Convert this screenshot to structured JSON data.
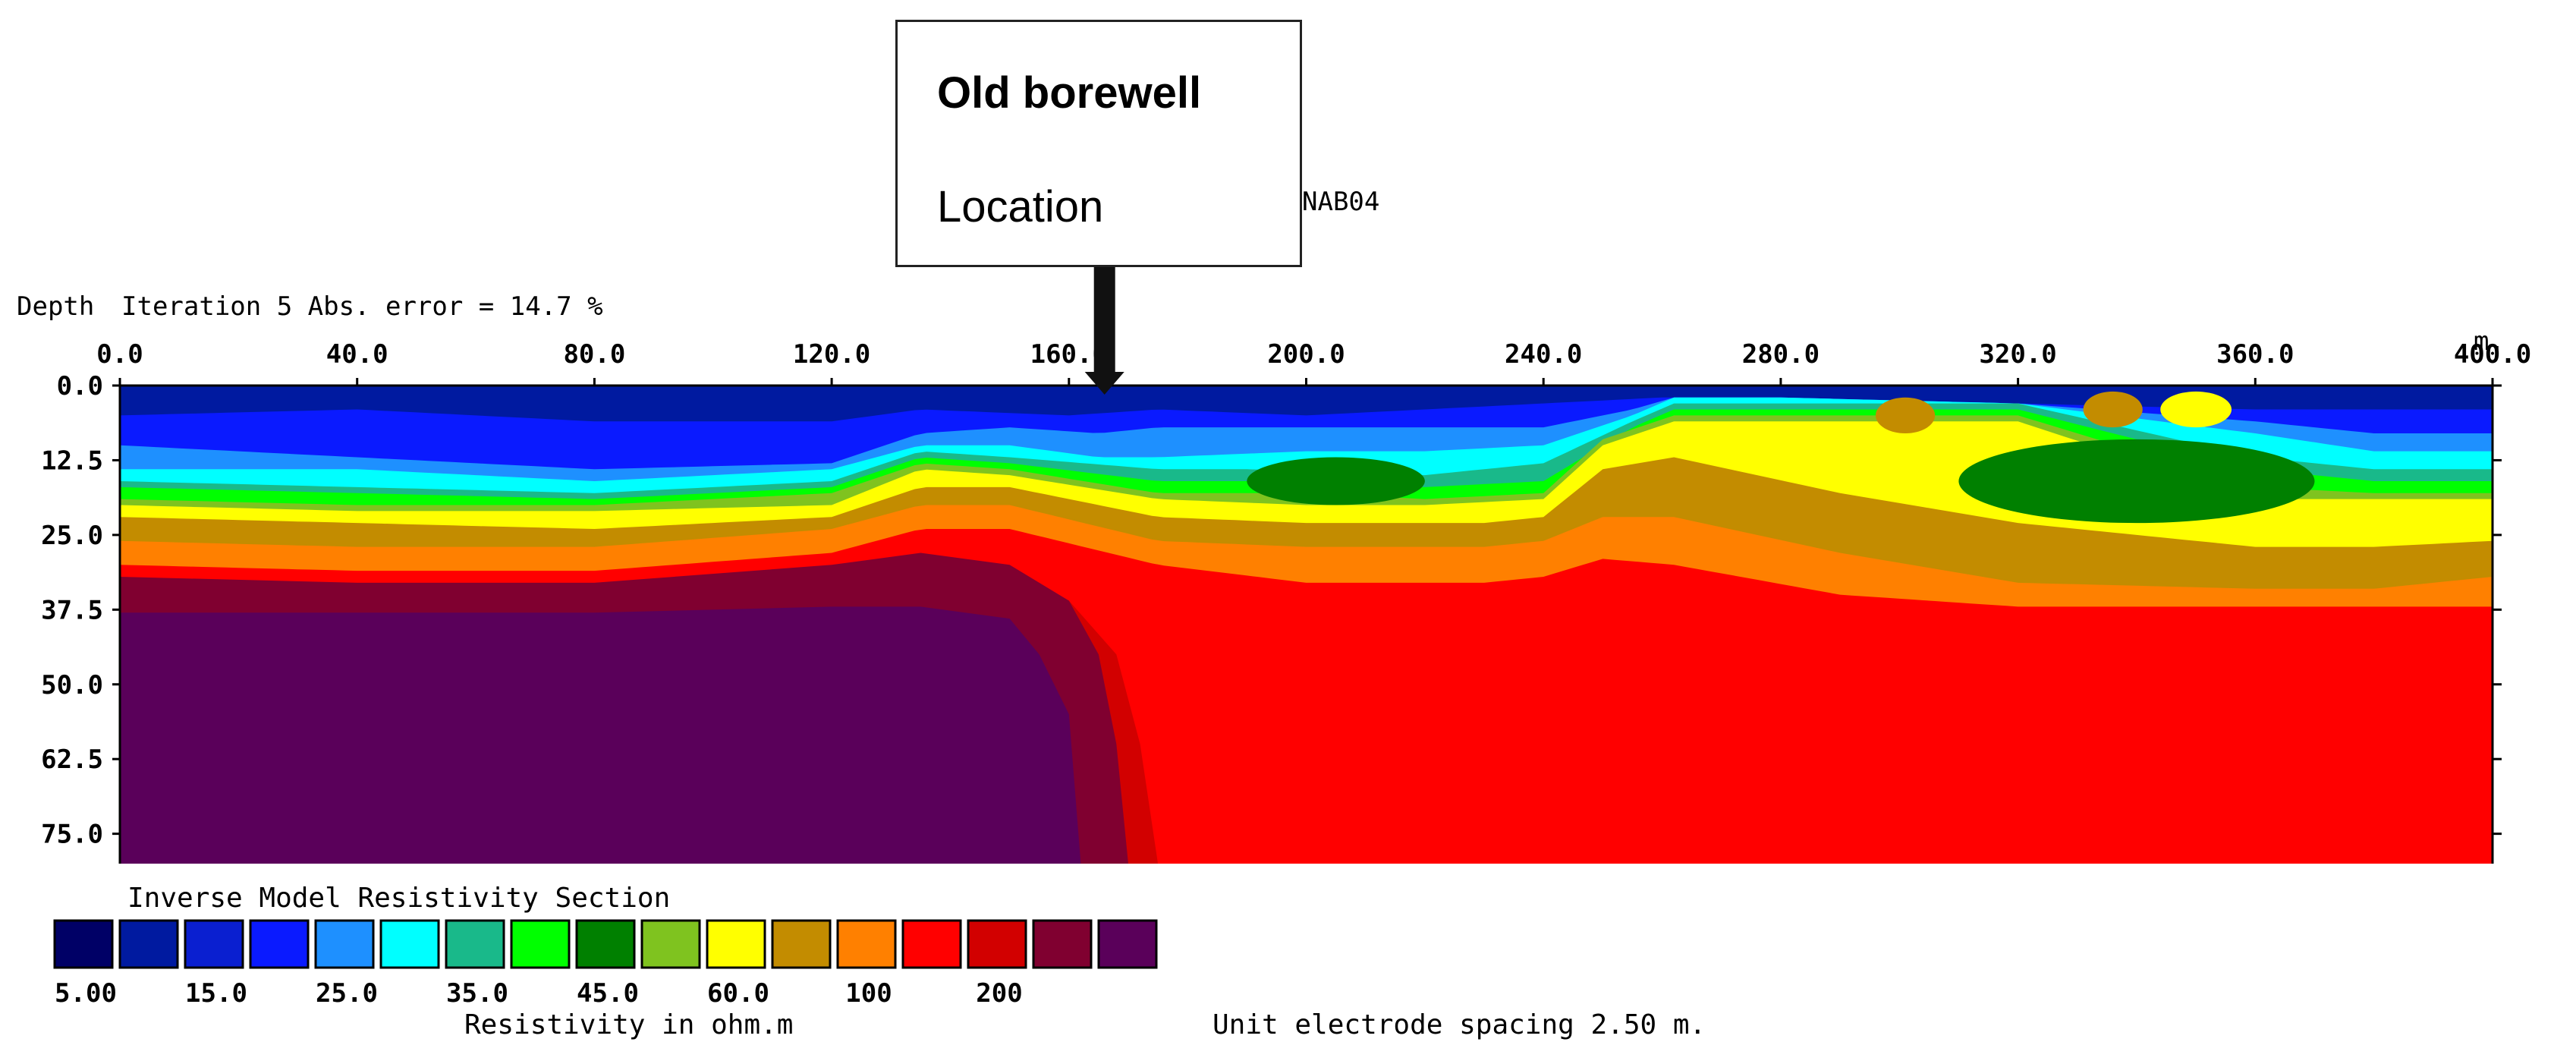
{
  "header": {
    "depth_label": "Depth",
    "iteration_text": "Iteration 5 Abs. error = 14.7 %",
    "profile_name": "NAB04",
    "x_unit": "m."
  },
  "callout": {
    "title": "Old borewell",
    "subtitle": "Location",
    "x_position_m": 166
  },
  "footer": {
    "section_title": "Inverse Model Resistivity Section",
    "resistivity_label": "Resistivity in ohm.m",
    "spacing_label": "Unit electrode spacing 2.50 m."
  },
  "colors": {
    "v1": "#000066",
    "v2": "#001aa0",
    "v3": "#0a1fd0",
    "v4": "#0a1aff",
    "v5": "#1e90ff",
    "v6": "#00ffff",
    "v7": "#19b98a",
    "v8": "#00ff00",
    "v9": "#008000",
    "v10": "#7fc31f",
    "v11": "#ffff00",
    "v12": "#c38c00",
    "v13": "#ff8000",
    "v14": "#ff0000",
    "v15": "#d20000",
    "v16": "#800030",
    "v17": "#5a005a"
  },
  "chart_data": {
    "type": "heatmap",
    "title": "Inverse Model Resistivity Section",
    "x_ticks": [
      "0.0",
      "40.0",
      "80.0",
      "120.0",
      "160.0",
      "200.0",
      "240.0",
      "280.0",
      "320.0",
      "360.0",
      "400.0"
    ],
    "y_ticks": [
      "0.0",
      "12.5",
      "25.0",
      "37.5",
      "50.0",
      "62.5",
      "75.0"
    ],
    "xlim": [
      0,
      400
    ],
    "ylim": [
      0,
      80
    ],
    "xlabel": "",
    "ylabel": "Depth",
    "legend_colors": [
      "#000066",
      "#001aa0",
      "#0a1fd0",
      "#0a1aff",
      "#1e90ff",
      "#00ffff",
      "#19b98a",
      "#00ff00",
      "#008000",
      "#7fc31f",
      "#ffff00",
      "#c38c00",
      "#ff8000",
      "#ff0000",
      "#d20000",
      "#800030",
      "#5a005a"
    ],
    "legend_labels": [
      "5.00",
      "15.0",
      "25.0",
      "35.0",
      "45.0",
      "60.0",
      "100",
      "200"
    ],
    "layer_boundaries": [
      {
        "color": "#0a1aff",
        "depth": [
          [
            0,
            5
          ],
          [
            40,
            4
          ],
          [
            80,
            6
          ],
          [
            120,
            6
          ],
          [
            135,
            4
          ],
          [
            160,
            5
          ],
          [
            175,
            4
          ],
          [
            200,
            5
          ],
          [
            240,
            3
          ],
          [
            260,
            2
          ],
          [
            280,
            2
          ],
          [
            320,
            3
          ],
          [
            360,
            4
          ],
          [
            400,
            4
          ]
        ]
      },
      {
        "color": "#1e90ff",
        "depth": [
          [
            0,
            10
          ],
          [
            40,
            12
          ],
          [
            80,
            14
          ],
          [
            120,
            13
          ],
          [
            135,
            8
          ],
          [
            150,
            7
          ],
          [
            165,
            8
          ],
          [
            175,
            7
          ],
          [
            200,
            7
          ],
          [
            240,
            7
          ],
          [
            255,
            4
          ],
          [
            262,
            2
          ],
          [
            280,
            2
          ],
          [
            320,
            3
          ],
          [
            360,
            6
          ],
          [
            380,
            8
          ],
          [
            400,
            8
          ]
        ]
      },
      {
        "color": "#00ffff",
        "depth": [
          [
            0,
            14
          ],
          [
            40,
            14
          ],
          [
            80,
            16
          ],
          [
            120,
            14
          ],
          [
            135,
            10
          ],
          [
            150,
            10
          ],
          [
            165,
            12
          ],
          [
            175,
            12
          ],
          [
            200,
            11
          ],
          [
            220,
            11
          ],
          [
            240,
            10
          ],
          [
            255,
            5
          ],
          [
            262,
            2
          ],
          [
            280,
            2
          ],
          [
            320,
            3
          ],
          [
            360,
            8
          ],
          [
            380,
            11
          ],
          [
            400,
            11
          ]
        ]
      },
      {
        "color": "#19b98a",
        "depth": [
          [
            0,
            16
          ],
          [
            40,
            17
          ],
          [
            80,
            18
          ],
          [
            120,
            16
          ],
          [
            135,
            11
          ],
          [
            150,
            12
          ],
          [
            175,
            14
          ],
          [
            190,
            14
          ],
          [
            220,
            15
          ],
          [
            240,
            13
          ],
          [
            255,
            6
          ],
          [
            262,
            3
          ],
          [
            280,
            3
          ],
          [
            320,
            3
          ],
          [
            360,
            12
          ],
          [
            380,
            14
          ],
          [
            400,
            14
          ]
        ]
      },
      {
        "color": "#00ff00",
        "depth": [
          [
            0,
            17
          ],
          [
            40,
            18
          ],
          [
            80,
            19
          ],
          [
            120,
            17
          ],
          [
            135,
            12
          ],
          [
            150,
            13
          ],
          [
            175,
            16
          ],
          [
            200,
            16
          ],
          [
            220,
            17
          ],
          [
            240,
            16
          ],
          [
            255,
            7
          ],
          [
            262,
            4
          ],
          [
            280,
            4
          ],
          [
            320,
            4
          ],
          [
            360,
            14
          ],
          [
            380,
            16
          ],
          [
            400,
            16
          ]
        ]
      },
      {
        "color": "#7fc31f",
        "depth": [
          [
            0,
            19
          ],
          [
            40,
            20
          ],
          [
            80,
            20
          ],
          [
            120,
            18
          ],
          [
            135,
            13
          ],
          [
            150,
            14
          ],
          [
            175,
            18
          ],
          [
            200,
            18
          ],
          [
            220,
            19
          ],
          [
            240,
            18
          ],
          [
            250,
            9
          ],
          [
            262,
            5
          ],
          [
            280,
            5
          ],
          [
            320,
            5
          ],
          [
            360,
            17
          ],
          [
            380,
            18
          ],
          [
            400,
            18
          ]
        ]
      },
      {
        "color": "#ffff00",
        "depth": [
          [
            0,
            20
          ],
          [
            40,
            21
          ],
          [
            80,
            21
          ],
          [
            120,
            20
          ],
          [
            135,
            14
          ],
          [
            150,
            15
          ],
          [
            175,
            19
          ],
          [
            200,
            20
          ],
          [
            220,
            20
          ],
          [
            240,
            19
          ],
          [
            250,
            10
          ],
          [
            262,
            6
          ],
          [
            280,
            6
          ],
          [
            320,
            6
          ],
          [
            360,
            19
          ],
          [
            380,
            19
          ],
          [
            400,
            19
          ]
        ]
      },
      {
        "color": "#c38c00",
        "depth": [
          [
            0,
            22
          ],
          [
            40,
            23
          ],
          [
            80,
            24
          ],
          [
            120,
            22
          ],
          [
            135,
            17
          ],
          [
            150,
            17
          ],
          [
            175,
            22
          ],
          [
            200,
            23
          ],
          [
            230,
            23
          ],
          [
            240,
            22
          ],
          [
            250,
            14
          ],
          [
            262,
            12
          ],
          [
            290,
            18
          ],
          [
            320,
            23
          ],
          [
            360,
            27
          ],
          [
            380,
            27
          ],
          [
            400,
            26
          ]
        ]
      },
      {
        "color": "#ff8000",
        "depth": [
          [
            0,
            26
          ],
          [
            40,
            27
          ],
          [
            80,
            27
          ],
          [
            120,
            24
          ],
          [
            135,
            20
          ],
          [
            150,
            20
          ],
          [
            175,
            26
          ],
          [
            200,
            27
          ],
          [
            230,
            27
          ],
          [
            240,
            26
          ],
          [
            250,
            22
          ],
          [
            262,
            22
          ],
          [
            290,
            28
          ],
          [
            320,
            33
          ],
          [
            360,
            34
          ],
          [
            380,
            34
          ],
          [
            400,
            32
          ]
        ]
      },
      {
        "color": "#ff0000",
        "depth": [
          [
            0,
            30
          ],
          [
            40,
            31
          ],
          [
            80,
            31
          ],
          [
            120,
            28
          ],
          [
            135,
            24
          ],
          [
            150,
            24
          ],
          [
            175,
            30
          ],
          [
            200,
            33
          ],
          [
            230,
            33
          ],
          [
            240,
            32
          ],
          [
            250,
            29
          ],
          [
            262,
            30
          ],
          [
            290,
            35
          ],
          [
            320,
            37
          ],
          [
            360,
            37
          ],
          [
            380,
            37
          ],
          [
            400,
            37
          ]
        ]
      }
    ],
    "deep_zone": {
      "dark_red_depth": [
        [
          0,
          34
        ],
        [
          40,
          35
        ],
        [
          80,
          35
        ],
        [
          120,
          32
        ],
        [
          135,
          31
        ],
        [
          150,
          32
        ],
        [
          160,
          36
        ]
      ],
      "purple_depth": [
        [
          0,
          38
        ],
        [
          40,
          38
        ],
        [
          80,
          38
        ],
        [
          120,
          37
        ],
        [
          135,
          37
        ],
        [
          150,
          39
        ],
        [
          155,
          45
        ],
        [
          160,
          55
        ],
        [
          162,
          80
        ]
      ]
    }
  }
}
